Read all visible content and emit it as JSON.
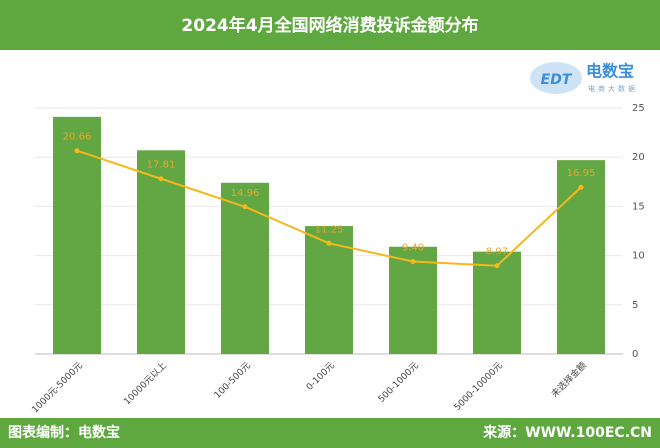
{
  "header": {
    "title": "2024年4月全国网络消费投诉金额分布",
    "logo_mark": "EDT",
    "logo_text": "电数宝",
    "logo_sub": "电商大数据"
  },
  "chart_data": {
    "type": "bar-line",
    "categories": [
      "1000元-5000元",
      "10000元以上",
      "100-500元",
      "0-100元",
      "500-1000元",
      "5000-10000元",
      "未选择金额"
    ],
    "series": [
      {
        "type": "bar",
        "color": "#62a743",
        "values": [
          24.1,
          20.7,
          17.4,
          13.0,
          10.9,
          10.4,
          19.7
        ]
      },
      {
        "type": "line",
        "color": "#f4b81c",
        "label_color": "#e9a62a",
        "values": [
          20.66,
          17.81,
          14.96,
          11.25,
          9.4,
          8.97,
          16.95
        ],
        "value_labels": [
          "20.66",
          "17.81",
          "14.96",
          "11.25",
          "9.40",
          "8.97",
          "16.95"
        ]
      }
    ],
    "ylim": [
      0,
      25
    ],
    "yticks": [
      0,
      5,
      10,
      15,
      20,
      25
    ],
    "grid": true
  },
  "footer": {
    "left": "图表编制：电数宝",
    "right": "来源：WWW.100EC.CN"
  }
}
